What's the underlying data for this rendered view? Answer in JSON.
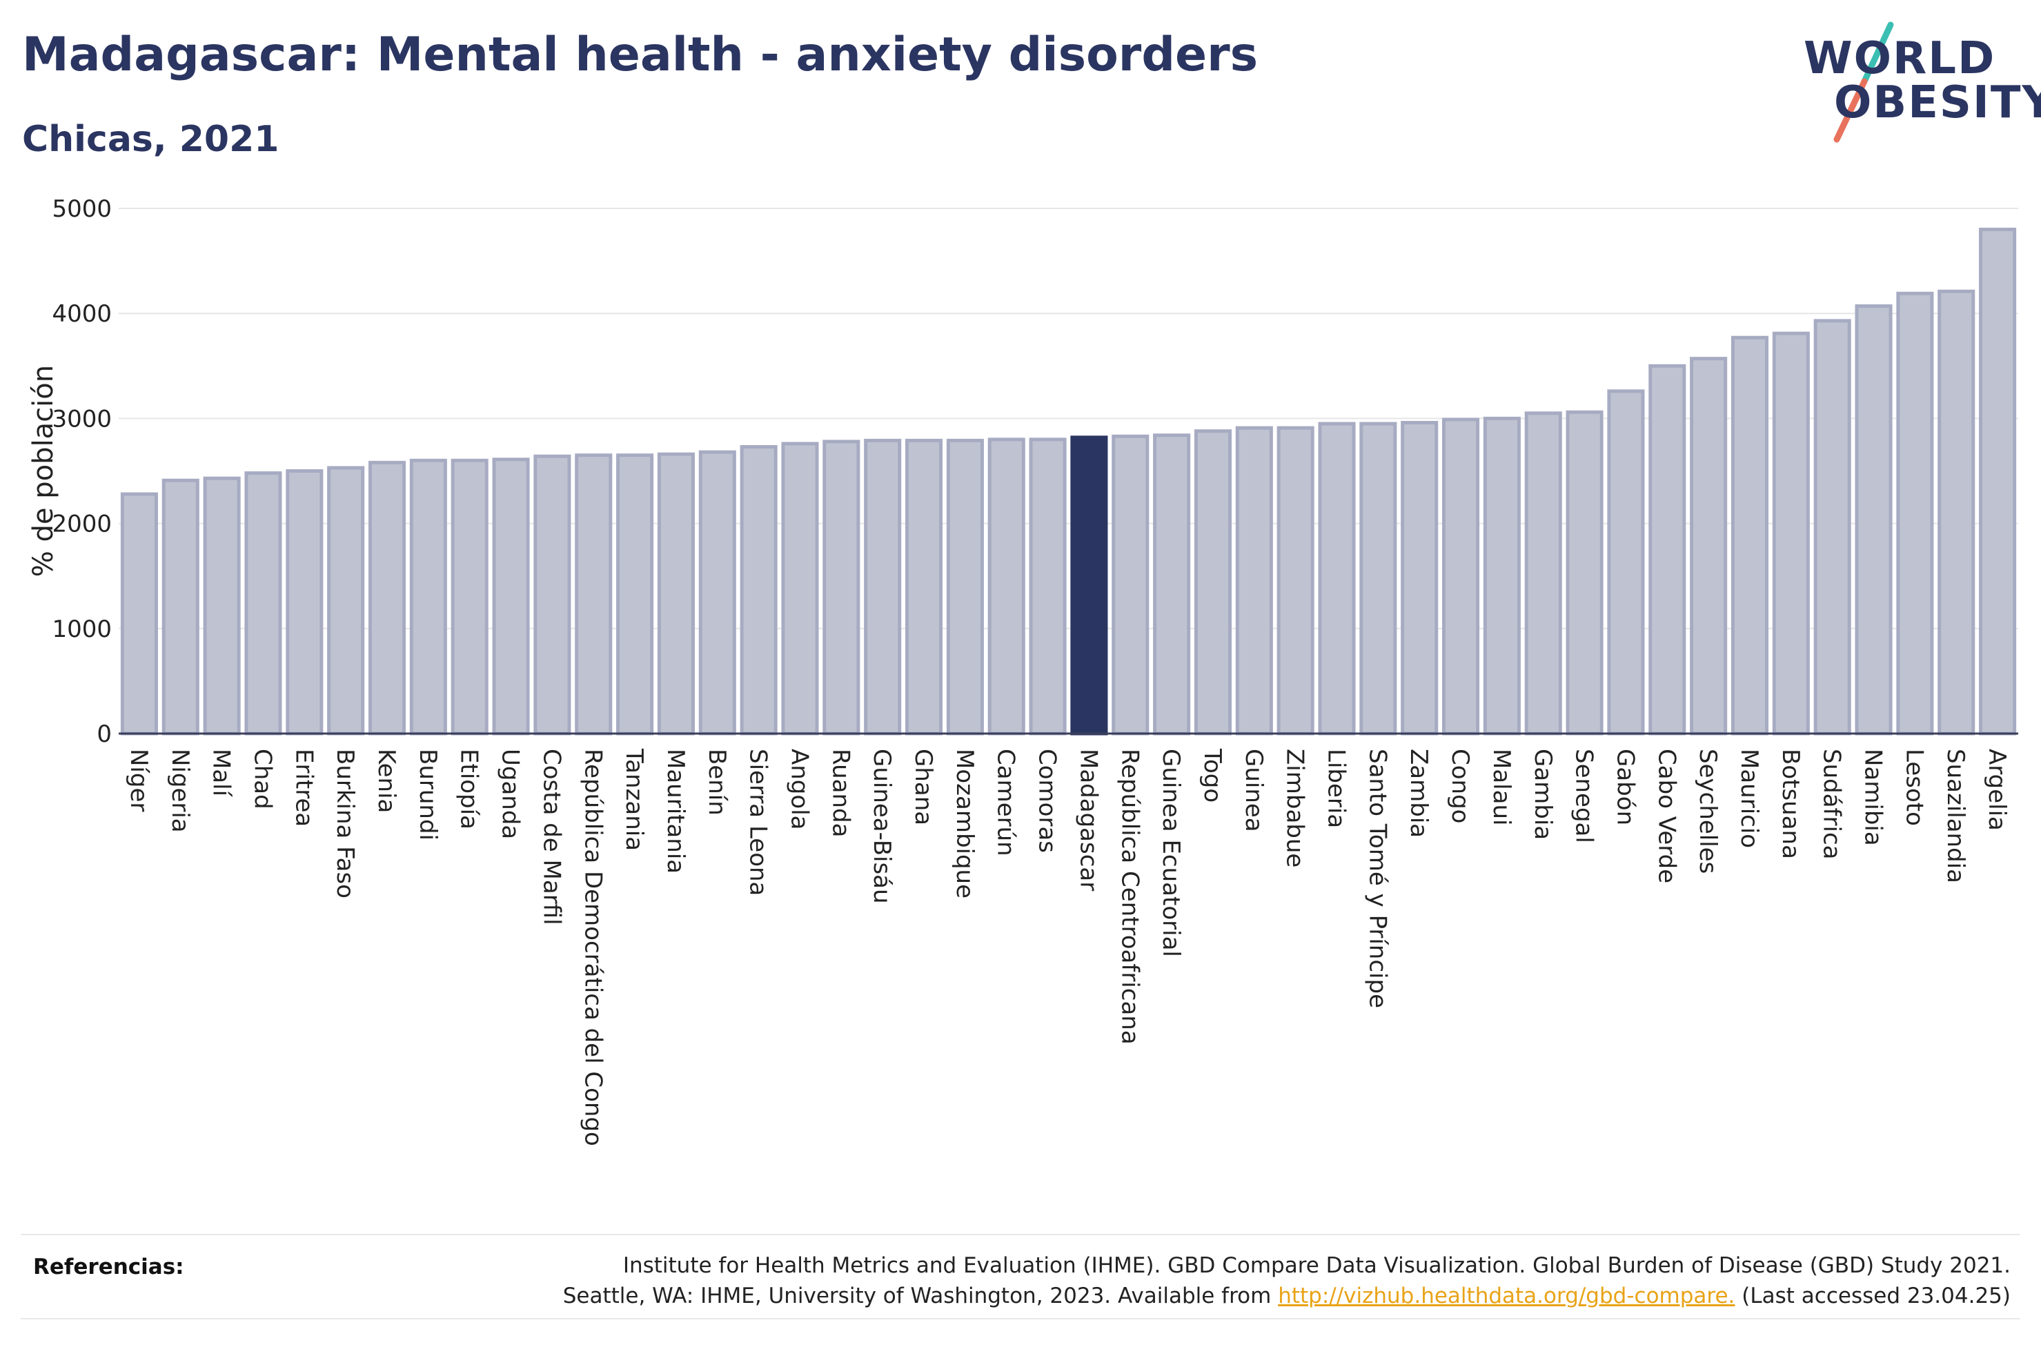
{
  "header": {
    "title": "Madagascar: Mental health - anxiety disorders",
    "subtitle": "Chicas, 2021"
  },
  "logo": {
    "line1": "WORLD",
    "line2": "OBESITY"
  },
  "colors": {
    "bar_fill": "#bfc3d1",
    "bar_stroke": "#a7abc2",
    "highlight": "#2b3561",
    "slash_top": "#3bbfb2",
    "slash_bottom": "#e8725c",
    "link": "#e8a317"
  },
  "chart_data": {
    "type": "bar",
    "title": "Madagascar: Mental health - anxiety disorders",
    "subtitle": "Chicas, 2021",
    "xlabel": "",
    "ylabel": "% de población",
    "ylim": [
      0,
      5000
    ],
    "yticks": [
      0,
      1000,
      2000,
      3000,
      4000,
      5000
    ],
    "grid": true,
    "highlight": "Madagascar",
    "categories": [
      "Níger",
      "Nigeria",
      "Malí",
      "Chad",
      "Eritrea",
      "Burkina Faso",
      "Kenia",
      "Burundi",
      "Etiopía",
      "Uganda",
      "Costa de Marfil",
      "República Democrática del Congo",
      "Tanzania",
      "Mauritania",
      "Benín",
      "Sierra Leona",
      "Angola",
      "Ruanda",
      "Guinea-Bisáu",
      "Ghana",
      "Mozambique",
      "Camerún",
      "Comoras",
      "Madagascar",
      "República Centroafricana",
      "Guinea Ecuatorial",
      "Togo",
      "Guinea",
      "Zimbabue",
      "Liberia",
      "Santo Tomé y Príncipe",
      "Zambia",
      "Congo",
      "Malaui",
      "Gambia",
      "Senegal",
      "Gabón",
      "Cabo Verde",
      "Seychelles",
      "Mauricio",
      "Botsuana",
      "Sudáfrica",
      "Namibia",
      "Lesoto",
      "Suazilandia",
      "Argelia"
    ],
    "values": [
      2280,
      2410,
      2430,
      2480,
      2500,
      2530,
      2580,
      2600,
      2600,
      2610,
      2640,
      2650,
      2650,
      2660,
      2680,
      2730,
      2760,
      2780,
      2790,
      2790,
      2790,
      2800,
      2800,
      2820,
      2830,
      2840,
      2880,
      2910,
      2910,
      2950,
      2950,
      2960,
      2990,
      3000,
      3050,
      3060,
      3260,
      3500,
      3570,
      3770,
      3810,
      3930,
      4070,
      4190,
      4210,
      4800
    ]
  },
  "footer": {
    "ref_label": "Referencias:",
    "ref_line1": "Institute for Health Metrics and Evaluation (IHME). GBD Compare Data Visualization. Global Burden of Disease (GBD) Study 2021.",
    "ref_line2_pre": "Seattle, WA: IHME, University of Washington, 2023. Available from ",
    "ref_link": "http://vizhub.healthdata.org/gbd-compare.",
    "ref_line2_post": " (Last accessed 23.04.25)"
  }
}
